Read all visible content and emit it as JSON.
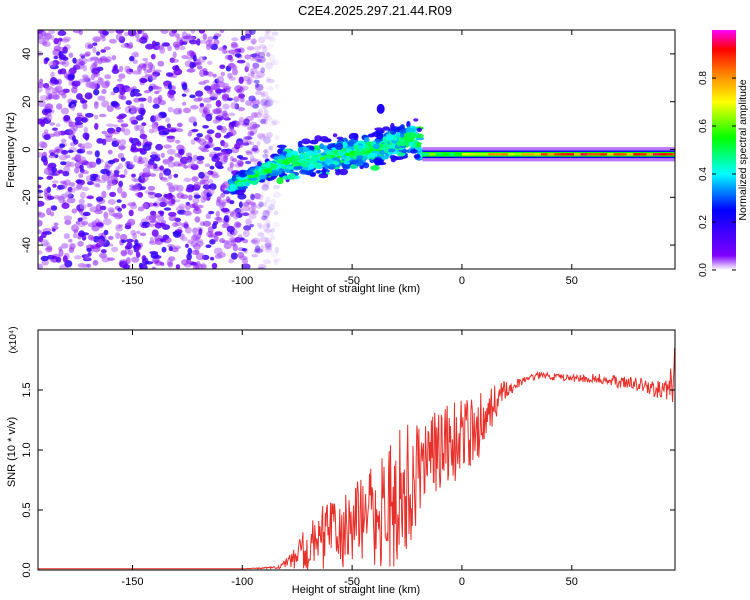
{
  "title": "C2E4.2025.297.21.44.R09",
  "chart_data": [
    {
      "type": "heatmap",
      "name": "spectrogram",
      "title": "C2E4.2025.297.21.44.R09",
      "xlabel": "Height of straight line (km)",
      "ylabel": "Frequency (Hz)",
      "xlim": [
        -193,
        97
      ],
      "ylim": [
        -50,
        50
      ],
      "xticks": [
        -150,
        -100,
        -50,
        0,
        50
      ],
      "yticks": [
        -40,
        -20,
        0,
        20,
        40
      ],
      "colorbar": {
        "label": "Normalized spectral amplitude",
        "range": [
          0,
          1
        ],
        "ticks": [
          0.0,
          0.2,
          0.4,
          0.6,
          0.8
        ],
        "tick_labels": [
          "0.0",
          "0.2",
          "0.4",
          "0.6",
          "0.8"
        ],
        "colors": [
          "#ffffff",
          "#8000ff",
          "#0000ff",
          "#00ffff",
          "#00ff00",
          "#ffff00",
          "#ff8000",
          "#ff0000",
          "#ff00ff"
        ]
      },
      "features": [
        {
          "name": "noise-region",
          "x_range": [
            -193,
            -88
          ],
          "freq_range": [
            -50,
            50
          ],
          "amplitude": 0.1
        },
        {
          "name": "echo-trend",
          "x": [
            -105,
            -80,
            -60,
            -40,
            -22,
            -18
          ],
          "freq": [
            -15,
            -5,
            -3,
            0,
            5,
            0
          ],
          "amplitude": 0.35
        },
        {
          "name": "stable-line",
          "x_range": [
            -18,
            97
          ],
          "freq": -2,
          "amplitude": 0.9
        },
        {
          "name": "isolated-blob",
          "x": -37,
          "freq": 17,
          "amplitude": 0.2
        }
      ]
    },
    {
      "type": "line",
      "name": "snr",
      "xlabel": "Height of straight line (km)",
      "ylabel": "SNR (10 * v/v)",
      "y_multiplier": "(x10⁴)",
      "xlim": [
        -193,
        97
      ],
      "ylim": [
        0,
        2.0
      ],
      "xticks": [
        -150,
        -100,
        -50,
        0,
        50
      ],
      "yticks": [
        0.0,
        0.5,
        1.0,
        1.5
      ],
      "ytick_labels": [
        "0.0",
        "0.5",
        "1.0",
        "1.5"
      ],
      "series": [
        {
          "name": "SNR",
          "color": "#e8302a",
          "x": [
            -193,
            -150,
            -100,
            -85,
            -80,
            -75,
            -70,
            -65,
            -60,
            -55,
            -50,
            -45,
            -40,
            -35,
            -30,
            -25,
            -22,
            -18,
            -15,
            -10,
            -5,
            0,
            5,
            10,
            15,
            20,
            25,
            30,
            35,
            40,
            50,
            60,
            70,
            80,
            90,
            95,
            97
          ],
          "y": [
            0.01,
            0.01,
            0.01,
            0.02,
            0.05,
            0.12,
            0.2,
            0.26,
            0.3,
            0.33,
            0.36,
            0.4,
            0.45,
            0.52,
            0.58,
            0.72,
            0.85,
            0.9,
            0.95,
            1.0,
            1.05,
            1.1,
            1.15,
            1.25,
            1.4,
            1.5,
            1.55,
            1.6,
            1.62,
            1.61,
            1.6,
            1.6,
            1.57,
            1.55,
            1.5,
            1.55,
            1.65
          ],
          "spread": [
            0,
            0,
            0,
            0.01,
            0.04,
            0.12,
            0.2,
            0.25,
            0.3,
            0.32,
            0.35,
            0.4,
            0.45,
            0.5,
            0.55,
            0.6,
            0.55,
            0.4,
            0.38,
            0.35,
            0.35,
            0.32,
            0.3,
            0.25,
            0.15,
            0.08,
            0.04,
            0.03,
            0.03,
            0.03,
            0.03,
            0.04,
            0.05,
            0.06,
            0.08,
            0.15,
            0.3
          ]
        }
      ]
    }
  ]
}
